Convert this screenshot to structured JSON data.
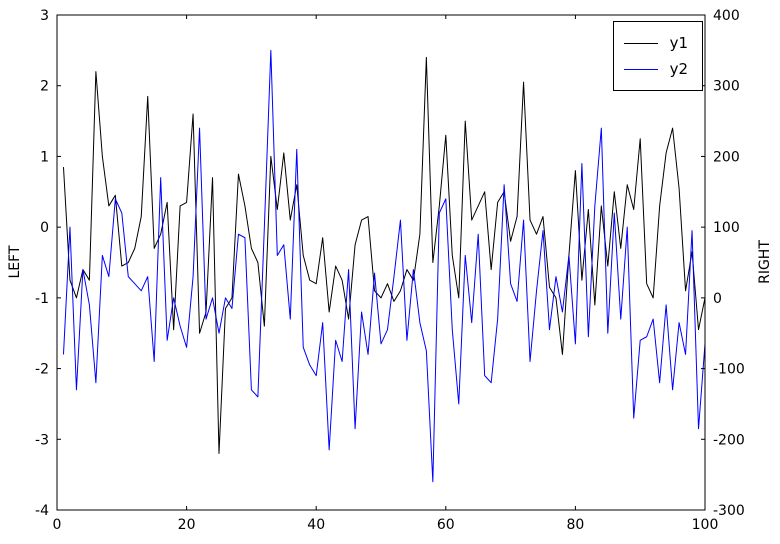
{
  "figure": {
    "background": "#ffffff",
    "axis_color": "#000000"
  },
  "chart_data": {
    "type": "line",
    "title": "",
    "xlabel": "",
    "ylabel_left": "LEFT",
    "ylabel_right": "RIGHT",
    "xlim": [
      0,
      100
    ],
    "ylim_left": [
      -4,
      3
    ],
    "ylim_right": [
      -300,
      400
    ],
    "xticks": [
      0,
      20,
      40,
      60,
      80,
      100
    ],
    "yticks_left": [
      -4,
      -3,
      -2,
      -1,
      0,
      1,
      2,
      3
    ],
    "yticks_right": [
      -300,
      -200,
      -100,
      0,
      100,
      200,
      300,
      400
    ],
    "grid": false,
    "legend_position": "upper right",
    "x": [
      1,
      2,
      3,
      4,
      5,
      6,
      7,
      8,
      9,
      10,
      11,
      12,
      13,
      14,
      15,
      16,
      17,
      18,
      19,
      20,
      21,
      22,
      23,
      24,
      25,
      26,
      27,
      28,
      29,
      30,
      31,
      32,
      33,
      34,
      35,
      36,
      37,
      38,
      39,
      40,
      41,
      42,
      43,
      44,
      45,
      46,
      47,
      48,
      49,
      50,
      51,
      52,
      53,
      54,
      55,
      56,
      57,
      58,
      59,
      60,
      61,
      62,
      63,
      64,
      65,
      66,
      67,
      68,
      69,
      70,
      71,
      72,
      73,
      74,
      75,
      76,
      77,
      78,
      79,
      80,
      81,
      82,
      83,
      84,
      85,
      86,
      87,
      88,
      89,
      90,
      91,
      92,
      93,
      94,
      95,
      96,
      97,
      98,
      99,
      100
    ],
    "series": [
      {
        "name": "y1",
        "axis": "left",
        "color": "#000000",
        "values": [
          0.85,
          -0.75,
          -1.0,
          -0.6,
          -0.75,
          2.2,
          1.0,
          0.3,
          0.45,
          -0.55,
          -0.5,
          -0.3,
          0.15,
          1.85,
          -0.3,
          -0.1,
          0.35,
          -1.45,
          0.3,
          0.35,
          1.6,
          -1.5,
          -1.2,
          0.7,
          -3.2,
          -1.15,
          -1.0,
          0.75,
          0.3,
          -0.3,
          -0.5,
          -1.4,
          1.0,
          0.25,
          1.05,
          0.1,
          0.6,
          -0.4,
          -0.75,
          -0.8,
          -0.15,
          -1.2,
          -0.55,
          -0.75,
          -1.3,
          -0.25,
          0.1,
          0.15,
          -0.9,
          -1.0,
          -0.8,
          -1.05,
          -0.9,
          -0.6,
          -0.75,
          -0.1,
          2.4,
          -0.5,
          0.3,
          1.3,
          -0.4,
          -1.0,
          1.5,
          0.1,
          0.3,
          0.5,
          -0.6,
          0.35,
          0.5,
          -0.2,
          0.15,
          2.05,
          0.1,
          -0.1,
          0.15,
          -0.85,
          -1.0,
          -1.8,
          -0.4,
          0.8,
          -0.75,
          0.25,
          -1.1,
          0.3,
          -0.55,
          0.5,
          -0.3,
          0.6,
          0.25,
          1.25,
          -0.8,
          -1.0,
          0.3,
          1.05,
          1.4,
          0.55,
          -0.9,
          -0.35,
          -1.45,
          -1.0
        ]
      },
      {
        "name": "y2",
        "axis": "right",
        "color": "#0000ff",
        "values": [
          -80,
          100,
          -130,
          40,
          -10,
          -120,
          60,
          30,
          140,
          120,
          30,
          20,
          10,
          30,
          -90,
          170,
          -60,
          0,
          -40,
          -70,
          30,
          240,
          -30,
          0,
          -50,
          0,
          -15,
          90,
          85,
          -130,
          -140,
          100,
          350,
          60,
          75,
          -30,
          210,
          -70,
          -95,
          -110,
          -35,
          -215,
          -60,
          -90,
          40,
          -185,
          -20,
          -80,
          35,
          -65,
          -45,
          30,
          110,
          -60,
          40,
          -35,
          -75,
          -260,
          120,
          140,
          -45,
          -150,
          60,
          -35,
          90,
          -110,
          -120,
          -30,
          160,
          20,
          -5,
          110,
          -90,
          10,
          95,
          -45,
          30,
          -20,
          60,
          -65,
          190,
          -55,
          130,
          240,
          -50,
          120,
          -30,
          100,
          -170,
          -60,
          -55,
          -30,
          -120,
          -10,
          -130,
          -35,
          -80,
          95,
          -185,
          -65
        ]
      }
    ]
  }
}
